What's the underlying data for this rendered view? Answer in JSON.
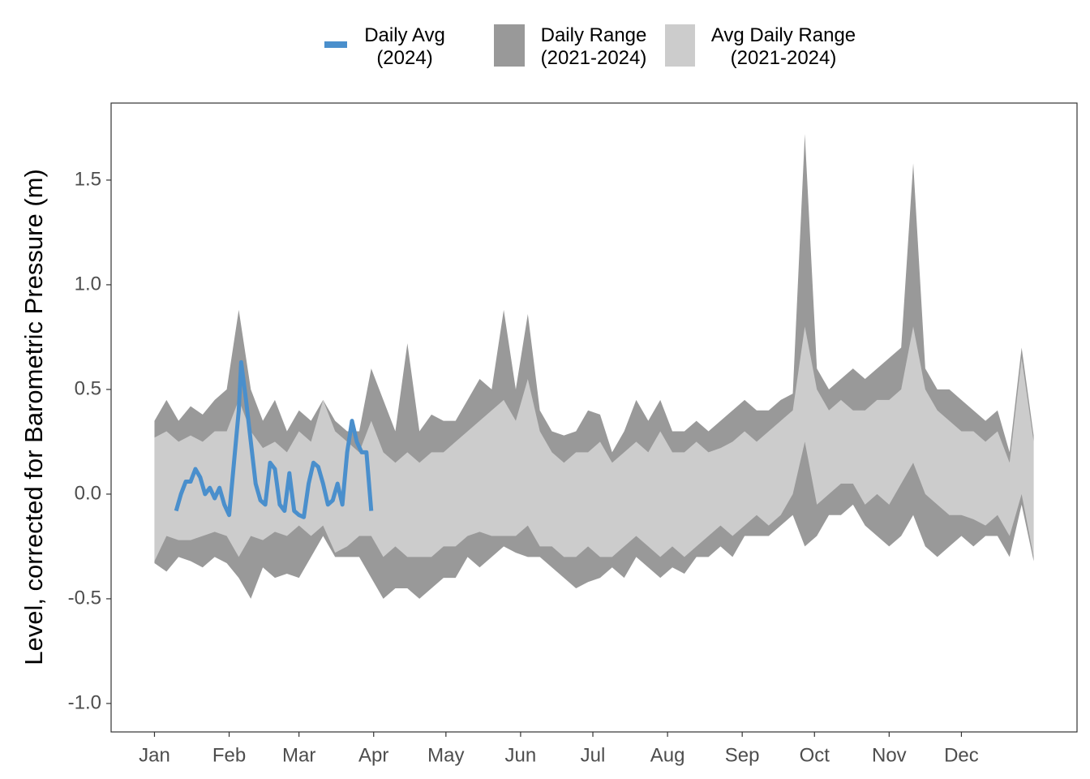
{
  "chart_data": {
    "type": "line",
    "y_label": "Level, corrected for Barometric Pressure (m)",
    "xlim": [
      -17,
      384
    ],
    "xticks": [
      {
        "value": 1,
        "label": "Jan"
      },
      {
        "value": 32,
        "label": "Feb"
      },
      {
        "value": 61,
        "label": "Mar"
      },
      {
        "value": 92,
        "label": "Apr"
      },
      {
        "value": 122,
        "label": "May"
      },
      {
        "value": 153,
        "label": "Jun"
      },
      {
        "value": 183,
        "label": "Jul"
      },
      {
        "value": 214,
        "label": "Aug"
      },
      {
        "value": 245,
        "label": "Sep"
      },
      {
        "value": 275,
        "label": "Oct"
      },
      {
        "value": 306,
        "label": "Nov"
      },
      {
        "value": 336,
        "label": "Dec"
      }
    ],
    "ylim": [
      -1.136,
      1.868
    ],
    "yticks": [
      {
        "value": -1,
        "label": "-1.0"
      },
      {
        "value": -0.5,
        "label": "-0.5"
      },
      {
        "value": 0,
        "label": "0.0"
      },
      {
        "value": 0.5,
        "label": "0.5"
      },
      {
        "value": 1,
        "label": "1.0"
      },
      {
        "value": 1.5,
        "label": "1.5"
      }
    ],
    "grid": false,
    "legend": "top",
    "series": [
      {
        "name": "Daily Avg\n(2024)",
        "color": "#4a8fcc",
        "type": "line",
        "x": [
          10,
          12,
          14,
          16,
          18,
          20,
          22,
          24,
          26,
          28,
          30,
          32,
          34,
          36,
          37,
          39,
          41,
          43,
          45,
          47,
          49,
          51,
          53,
          55,
          57,
          59,
          61,
          63,
          65,
          67,
          69,
          71,
          73,
          75,
          77,
          79,
          81,
          83,
          85,
          87,
          89,
          91
        ],
        "values": [
          -0.08,
          0.0,
          0.06,
          0.06,
          0.12,
          0.08,
          0.0,
          0.03,
          -0.02,
          0.03,
          -0.05,
          -0.1,
          0.15,
          0.4,
          0.63,
          0.45,
          0.25,
          0.05,
          -0.03,
          -0.05,
          0.15,
          0.12,
          -0.05,
          -0.08,
          0.1,
          -0.08,
          -0.1,
          -0.11,
          0.05,
          0.15,
          0.13,
          0.05,
          -0.05,
          -0.03,
          0.05,
          -0.05,
          0.2,
          0.35,
          0.25,
          0.2,
          0.2,
          -0.08
        ]
      },
      {
        "name": "Daily Range\n(2021-2024)",
        "color": "#999999",
        "type": "band",
        "x": [
          1,
          6,
          11,
          16,
          21,
          26,
          31,
          36,
          41,
          46,
          51,
          56,
          61,
          66,
          71,
          76,
          81,
          86,
          91,
          96,
          101,
          106,
          111,
          116,
          121,
          126,
          131,
          136,
          141,
          146,
          151,
          156,
          161,
          166,
          171,
          176,
          181,
          186,
          191,
          196,
          201,
          206,
          211,
          216,
          221,
          226,
          231,
          236,
          241,
          246,
          251,
          256,
          261,
          266,
          271,
          276,
          281,
          286,
          291,
          296,
          301,
          306,
          311,
          316,
          321,
          326,
          331,
          336,
          341,
          346,
          351,
          356,
          361,
          366
        ],
        "upper": [
          0.35,
          0.45,
          0.35,
          0.42,
          0.38,
          0.45,
          0.5,
          0.88,
          0.5,
          0.35,
          0.45,
          0.3,
          0.4,
          0.35,
          0.45,
          0.35,
          0.3,
          0.3,
          0.6,
          0.45,
          0.3,
          0.72,
          0.3,
          0.38,
          0.35,
          0.35,
          0.45,
          0.55,
          0.5,
          0.88,
          0.5,
          0.86,
          0.4,
          0.3,
          0.28,
          0.3,
          0.4,
          0.38,
          0.2,
          0.3,
          0.45,
          0.35,
          0.45,
          0.3,
          0.3,
          0.35,
          0.3,
          0.35,
          0.4,
          0.45,
          0.4,
          0.4,
          0.45,
          0.48,
          1.72,
          0.6,
          0.5,
          0.55,
          0.6,
          0.55,
          0.6,
          0.65,
          0.7,
          1.58,
          0.6,
          0.5,
          0.5,
          0.45,
          0.4,
          0.35,
          0.4,
          0.2,
          0.7,
          0.28
        ],
        "lower": [
          -0.33,
          -0.37,
          -0.3,
          -0.32,
          -0.35,
          -0.3,
          -0.33,
          -0.4,
          -0.5,
          -0.35,
          -0.4,
          -0.38,
          -0.4,
          -0.3,
          -0.2,
          -0.3,
          -0.3,
          -0.3,
          -0.4,
          -0.5,
          -0.45,
          -0.45,
          -0.5,
          -0.45,
          -0.4,
          -0.4,
          -0.3,
          -0.35,
          -0.3,
          -0.25,
          -0.28,
          -0.3,
          -0.3,
          -0.35,
          -0.4,
          -0.45,
          -0.42,
          -0.4,
          -0.35,
          -0.4,
          -0.3,
          -0.35,
          -0.4,
          -0.35,
          -0.38,
          -0.3,
          -0.3,
          -0.25,
          -0.3,
          -0.2,
          -0.2,
          -0.2,
          -0.15,
          -0.1,
          -0.25,
          -0.2,
          -0.1,
          -0.1,
          -0.05,
          -0.15,
          -0.2,
          -0.25,
          -0.2,
          -0.1,
          -0.25,
          -0.3,
          -0.25,
          -0.2,
          -0.25,
          -0.2,
          -0.2,
          -0.3,
          -0.05,
          -0.32
        ]
      },
      {
        "name": "Avg Daily Range\n(2021-2024)",
        "color": "#cccccc",
        "type": "band",
        "x": [
          1,
          6,
          11,
          16,
          21,
          26,
          31,
          36,
          41,
          46,
          51,
          56,
          61,
          66,
          71,
          76,
          81,
          86,
          91,
          96,
          101,
          106,
          111,
          116,
          121,
          126,
          131,
          136,
          141,
          146,
          151,
          156,
          161,
          166,
          171,
          176,
          181,
          186,
          191,
          196,
          201,
          206,
          211,
          216,
          221,
          226,
          231,
          236,
          241,
          246,
          251,
          256,
          261,
          266,
          271,
          276,
          281,
          286,
          291,
          296,
          301,
          306,
          311,
          316,
          321,
          326,
          331,
          336,
          341,
          346,
          351,
          356,
          361,
          366
        ],
        "upper": [
          0.27,
          0.3,
          0.25,
          0.28,
          0.25,
          0.3,
          0.3,
          0.45,
          0.3,
          0.22,
          0.25,
          0.2,
          0.3,
          0.25,
          0.45,
          0.3,
          0.25,
          0.2,
          0.35,
          0.2,
          0.15,
          0.2,
          0.15,
          0.2,
          0.2,
          0.25,
          0.3,
          0.35,
          0.4,
          0.45,
          0.35,
          0.55,
          0.3,
          0.2,
          0.15,
          0.2,
          0.2,
          0.25,
          0.15,
          0.2,
          0.25,
          0.2,
          0.3,
          0.2,
          0.2,
          0.25,
          0.2,
          0.22,
          0.25,
          0.3,
          0.25,
          0.3,
          0.35,
          0.4,
          0.8,
          0.5,
          0.4,
          0.45,
          0.4,
          0.4,
          0.45,
          0.45,
          0.5,
          0.8,
          0.5,
          0.4,
          0.35,
          0.3,
          0.3,
          0.25,
          0.3,
          0.15,
          0.65,
          0.25
        ],
        "lower": [
          -0.32,
          -0.2,
          -0.22,
          -0.22,
          -0.2,
          -0.18,
          -0.2,
          -0.3,
          -0.2,
          -0.22,
          -0.18,
          -0.2,
          -0.15,
          -0.2,
          -0.15,
          -0.28,
          -0.25,
          -0.2,
          -0.2,
          -0.3,
          -0.25,
          -0.3,
          -0.3,
          -0.3,
          -0.25,
          -0.25,
          -0.2,
          -0.18,
          -0.2,
          -0.2,
          -0.2,
          -0.15,
          -0.25,
          -0.25,
          -0.3,
          -0.3,
          -0.25,
          -0.3,
          -0.3,
          -0.25,
          -0.2,
          -0.25,
          -0.3,
          -0.25,
          -0.3,
          -0.25,
          -0.2,
          -0.15,
          -0.2,
          -0.15,
          -0.1,
          -0.15,
          -0.1,
          0.0,
          0.25,
          -0.05,
          0.0,
          0.05,
          0.05,
          -0.05,
          0.0,
          -0.05,
          0.05,
          0.15,
          0.0,
          -0.05,
          -0.1,
          -0.1,
          -0.12,
          -0.15,
          -0.1,
          -0.2,
          0.0,
          -0.3
        ]
      }
    ]
  }
}
